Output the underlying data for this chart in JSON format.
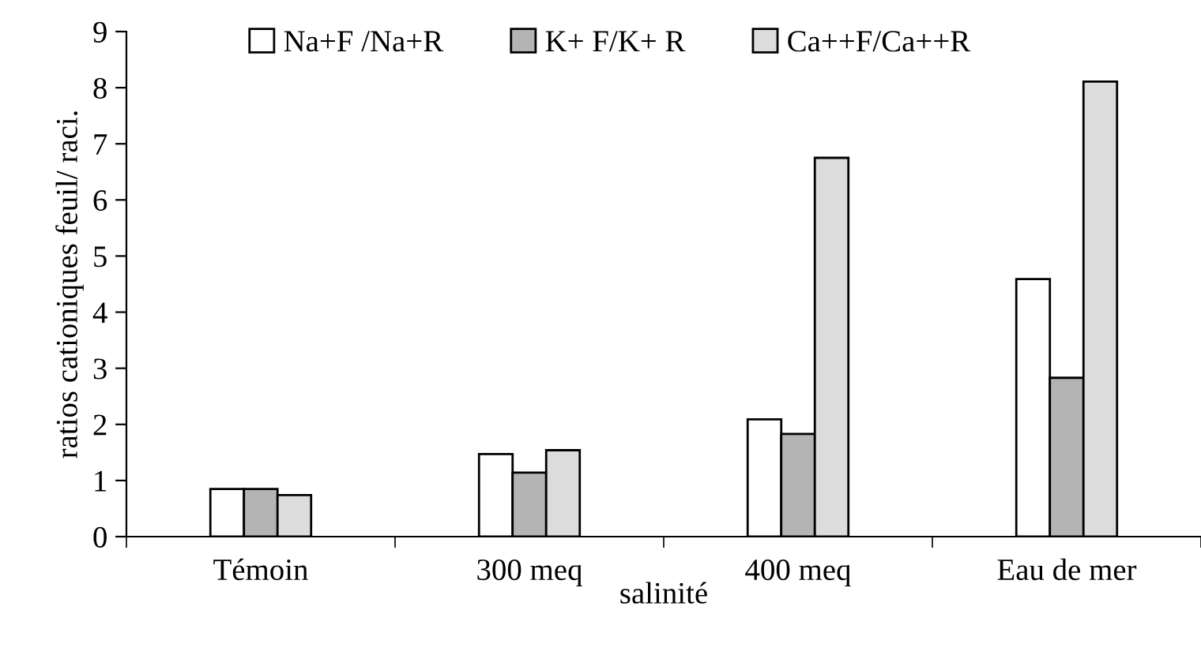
{
  "chart_data": {
    "type": "bar",
    "ylabel": "ratios cationiques feuil/ raci.",
    "xlabel": "salinité",
    "categories": [
      "Témoin",
      "300 meq",
      "400 meq",
      "Eau de mer"
    ],
    "series": [
      {
        "name": "Na+F /Na+R",
        "color": "#ffffff",
        "values": [
          0.85,
          1.47,
          2.09,
          4.59
        ]
      },
      {
        "name": "K+ F/K+ R",
        "color": "#b4b4b4",
        "values": [
          0.85,
          1.14,
          1.83,
          2.83
        ]
      },
      {
        "name": "Ca++F/Ca++R",
        "color": "#dcdcdc",
        "values": [
          0.74,
          1.54,
          6.75,
          8.11
        ]
      }
    ],
    "ylim": [
      0,
      9
    ],
    "yticks": [
      0,
      1,
      2,
      3,
      4,
      5,
      6,
      7,
      8,
      9
    ],
    "grid": false,
    "legend": "top"
  }
}
